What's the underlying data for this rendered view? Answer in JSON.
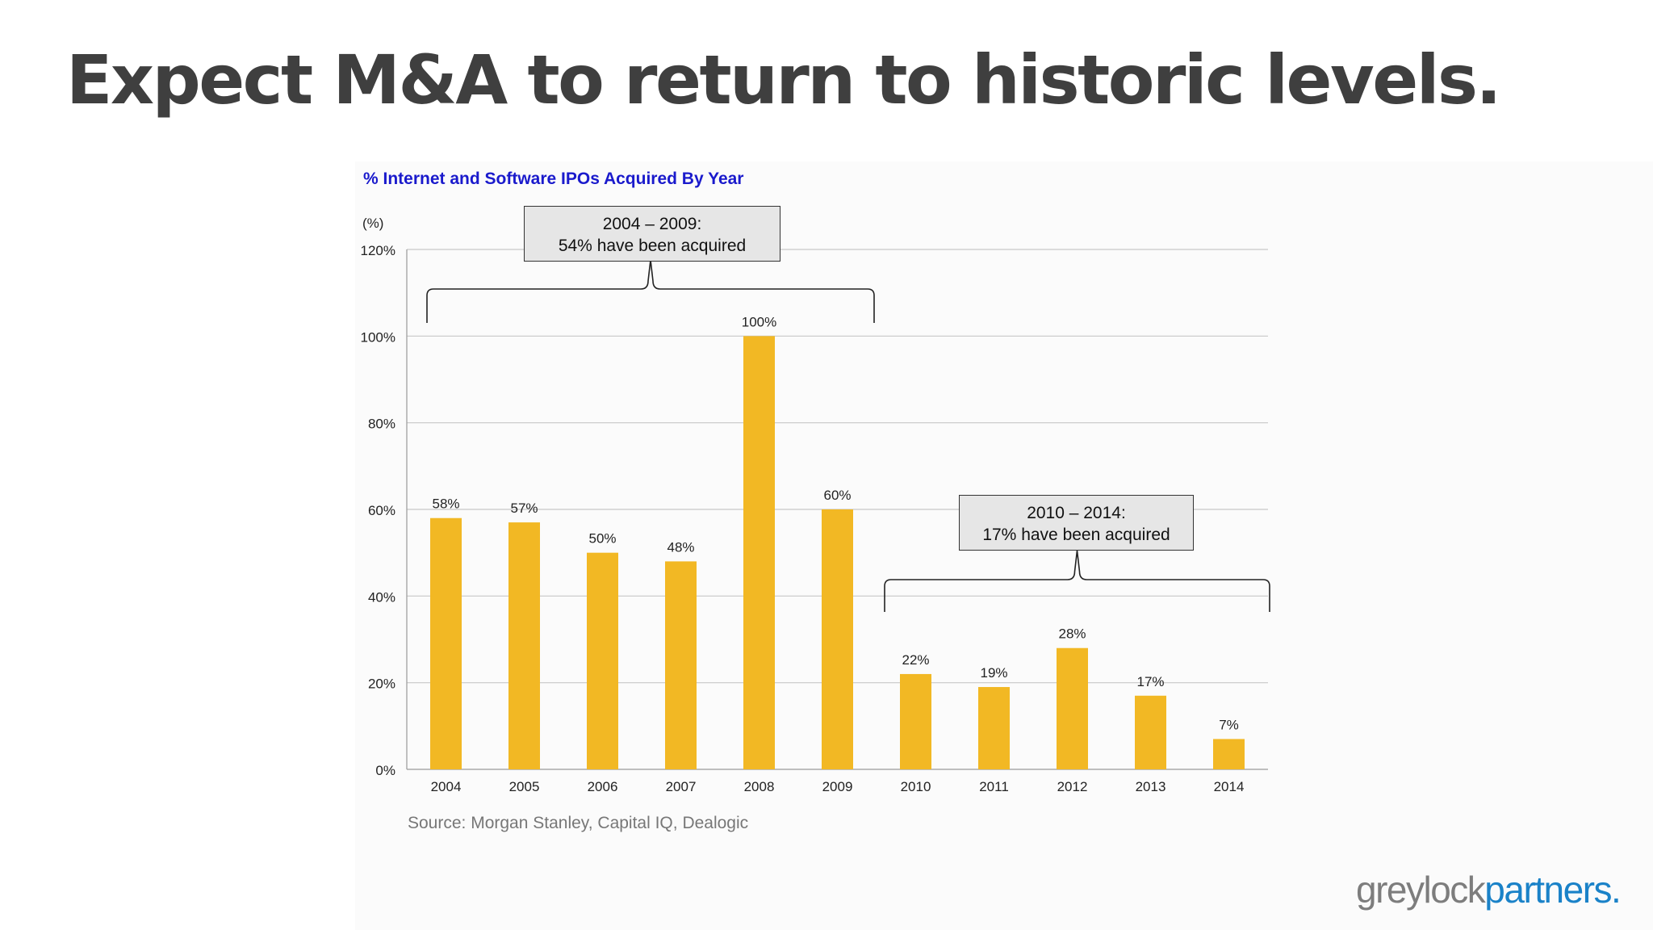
{
  "slide": {
    "title": "Expect M&A to return to historic levels.",
    "source": "Source: Morgan Stanley, Capital IQ, Dealogic",
    "brand_part1": "greylock",
    "brand_part2": "partners."
  },
  "callouts": [
    {
      "line1": "2004 – 2009:",
      "line2": "54% have been acquired"
    },
    {
      "line1": "2010 – 2014:",
      "line2": "17% have been acquired"
    }
  ],
  "colors": {
    "bar": "#f2b824",
    "title": "#1a1acc",
    "grid": "#c8c8c8"
  },
  "chart_data": {
    "type": "bar",
    "title": "% Internet and Software IPOs Acquired By Year",
    "ylabel": "(%)",
    "xlabel": "",
    "categories": [
      "2004",
      "2005",
      "2006",
      "2007",
      "2008",
      "2009",
      "2010",
      "2011",
      "2012",
      "2013",
      "2014"
    ],
    "values": [
      58,
      57,
      50,
      48,
      100,
      60,
      22,
      19,
      28,
      17,
      7
    ],
    "data_labels": [
      "58%",
      "57%",
      "50%",
      "48%",
      "100%",
      "60%",
      "22%",
      "19%",
      "28%",
      "17%",
      "7%"
    ],
    "ylim": [
      0,
      120
    ],
    "yticks": [
      0,
      20,
      40,
      60,
      80,
      100,
      120
    ],
    "ytick_labels": [
      "0%",
      "20%",
      "40%",
      "60%",
      "80%",
      "100%",
      "120%"
    ],
    "grid": true,
    "legend": false
  }
}
